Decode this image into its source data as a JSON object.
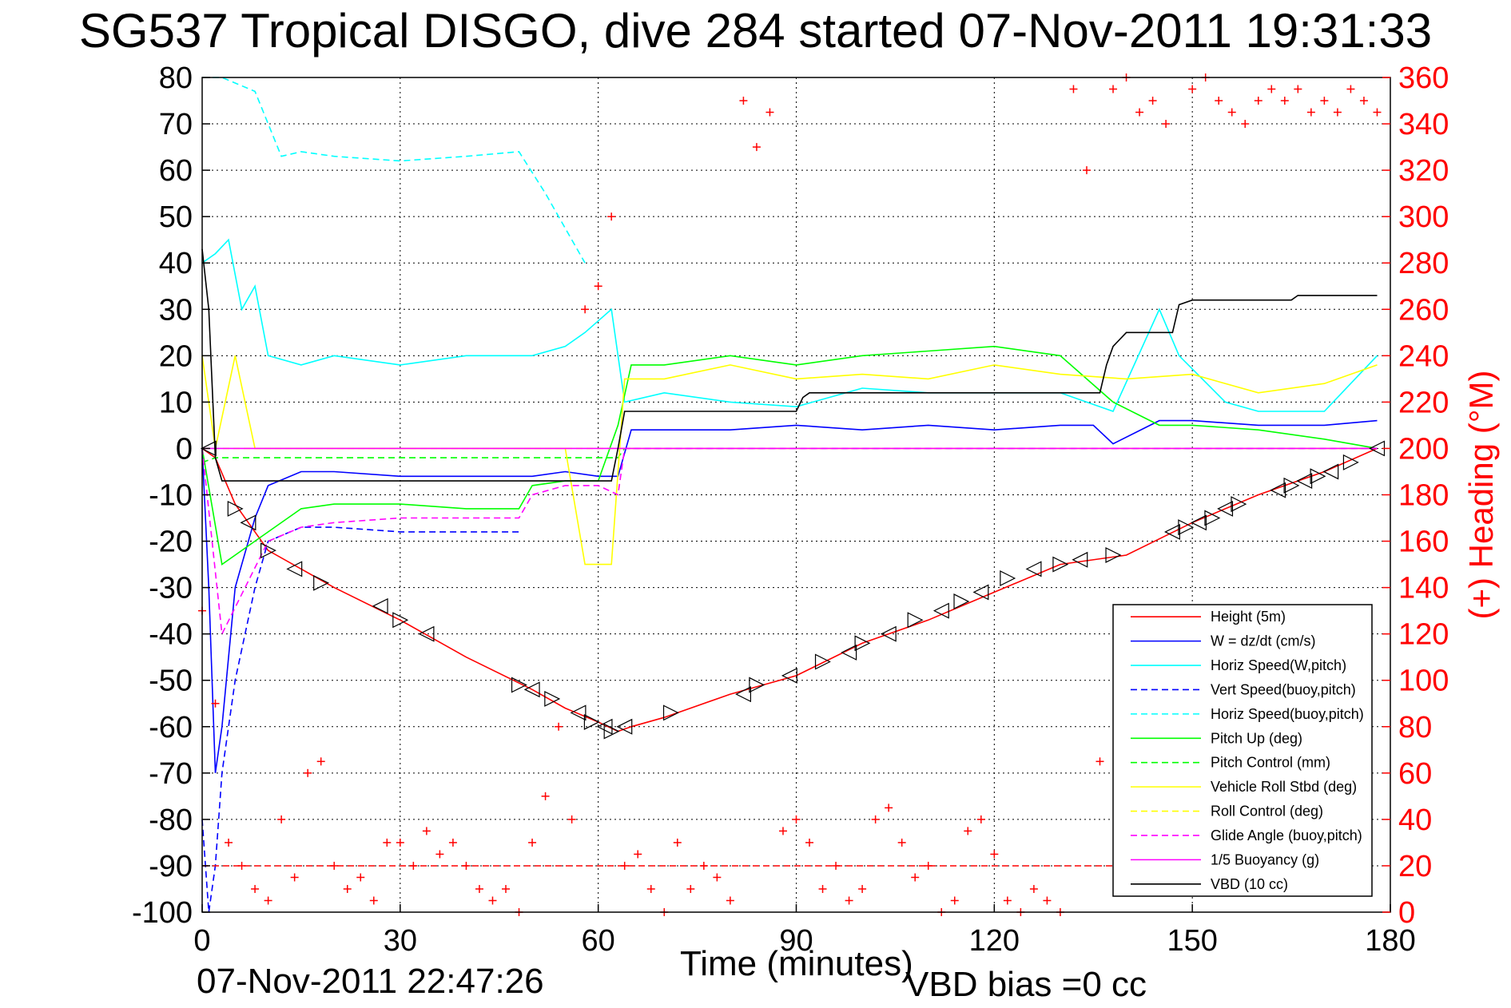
{
  "title": "SG537 Tropical DISGO, dive 284 started 07-Nov-2011 19:31:33",
  "timestamp": "07-Nov-2011 22:47:26",
  "vbd_bias": "VBD bias =0 cc",
  "chart_data": {
    "type": "line",
    "xlabel": "Time (minutes)",
    "ylabel_left": "",
    "ylabel_right": "(+) Heading (°M)",
    "xlim": [
      0,
      180
    ],
    "ylim_left": [
      -100,
      80
    ],
    "ylim_right": [
      0,
      360
    ],
    "x_ticks": [
      "0",
      "30",
      "60",
      "90",
      "120",
      "150",
      "180"
    ],
    "y_ticks_left": [
      "80",
      "70",
      "60",
      "50",
      "40",
      "30",
      "20",
      "10",
      "0",
      "-10",
      "-20",
      "-30",
      "-40",
      "-50",
      "-60",
      "-70",
      "-80",
      "-90",
      "-100"
    ],
    "y_ticks_right": [
      "360",
      "340",
      "320",
      "300",
      "280",
      "260",
      "240",
      "220",
      "200",
      "180",
      "160",
      "140",
      "120",
      "100",
      "80",
      "60",
      "40",
      "20",
      "0"
    ],
    "grid": true,
    "legend_position": "bottom-right",
    "colors": {
      "height": "#ff0000",
      "w": "#0000ff",
      "horiz_speed": "#00ffff",
      "pitch": "#00ff00",
      "roll": "#ffff00",
      "glide": "#ff00ff",
      "vbd": "#000000",
      "heading": "#ff0000"
    },
    "series": [
      {
        "name": "Height (5m)",
        "color": "#ff0000",
        "style": "solid",
        "x": [
          0,
          2,
          5,
          10,
          20,
          30,
          40,
          50,
          55,
          60,
          63,
          65,
          70,
          80,
          90,
          100,
          110,
          120,
          130,
          140,
          150,
          160,
          170,
          178
        ],
        "y": [
          0,
          -2,
          -12,
          -22,
          -30,
          -37,
          -45,
          -52,
          -56,
          -59,
          -61,
          -60,
          -58,
          -53,
          -49,
          -42,
          -37,
          -31,
          -25,
          -23,
          -16,
          -10,
          -5,
          0
        ]
      },
      {
        "name": "W = dz/dt (cm/s)",
        "color": "#0000ff",
        "style": "solid",
        "x": [
          0,
          1,
          2,
          3,
          5,
          8,
          10,
          15,
          20,
          30,
          40,
          50,
          55,
          60,
          63,
          65,
          70,
          80,
          90,
          100,
          110,
          120,
          130,
          135,
          138,
          145,
          150,
          160,
          170,
          178
        ],
        "y": [
          0,
          -30,
          -70,
          -60,
          -30,
          -15,
          -8,
          -5,
          -5,
          -6,
          -6,
          -6,
          -5,
          -6,
          -6,
          4,
          4,
          4,
          5,
          4,
          5,
          4,
          5,
          5,
          1,
          6,
          6,
          5,
          5,
          6
        ]
      },
      {
        "name": "Horiz Speed(W,pitch)",
        "color": "#00ffff",
        "style": "solid",
        "x": [
          0,
          2,
          4,
          6,
          8,
          10,
          15,
          20,
          30,
          40,
          50,
          55,
          58,
          62,
          64,
          70,
          80,
          90,
          100,
          110,
          120,
          130,
          138,
          145,
          148,
          155,
          160,
          170,
          178
        ],
        "y": [
          40,
          42,
          45,
          30,
          35,
          20,
          18,
          20,
          18,
          20,
          20,
          22,
          25,
          30,
          10,
          12,
          10,
          9,
          13,
          12,
          12,
          12,
          8,
          30,
          20,
          10,
          8,
          8,
          20
        ]
      },
      {
        "name": "Vert Speed(buoy,pitch)",
        "color": "#0000ff",
        "style": "dashed",
        "x": [
          0,
          1,
          2,
          3,
          5,
          8,
          10,
          15,
          20,
          30,
          40,
          48
        ],
        "y": [
          -80,
          -100,
          -90,
          -70,
          -50,
          -30,
          -20,
          -17,
          -17,
          -18,
          -18,
          -18
        ]
      },
      {
        "name": "Horiz Speed(buoy,pitch)",
        "color": "#00ffff",
        "style": "dashed",
        "x": [
          0,
          3,
          8,
          12,
          15,
          20,
          30,
          40,
          48,
          52,
          54,
          58
        ],
        "y": [
          80,
          80,
          77,
          63,
          64,
          63,
          62,
          63,
          64,
          55,
          50,
          40
        ]
      },
      {
        "name": "Pitch Up (deg)",
        "color": "#00ff00",
        "style": "solid",
        "x": [
          0,
          3,
          10,
          15,
          20,
          30,
          40,
          48,
          50,
          55,
          60,
          63,
          65,
          70,
          80,
          90,
          100,
          110,
          120,
          130,
          138,
          145,
          150,
          160,
          170,
          178
        ],
        "y": [
          0,
          -25,
          -18,
          -13,
          -12,
          -12,
          -13,
          -13,
          -8,
          -7,
          -7,
          5,
          18,
          18,
          20,
          18,
          20,
          21,
          22,
          20,
          10,
          5,
          5,
          4,
          2,
          0
        ]
      },
      {
        "name": "Pitch Control (mm)",
        "color": "#00ff00",
        "style": "dashed",
        "x": [
          0,
          2,
          10,
          30,
          50,
          60,
          63,
          64,
          90,
          120,
          150,
          178
        ],
        "y": [
          -3,
          -2,
          -2,
          -2,
          -2,
          -2,
          -2,
          0,
          0,
          0,
          0,
          0
        ]
      },
      {
        "name": "Vehicle Roll Stbd (deg)",
        "color": "#ffff00",
        "style": "solid",
        "x": [
          0,
          2,
          5,
          8,
          10,
          20,
          30,
          40,
          50,
          55,
          58,
          62,
          64,
          70,
          80,
          90,
          100,
          110,
          120,
          130,
          140,
          150,
          160,
          170,
          178
        ],
        "y": [
          20,
          0,
          20,
          0,
          0,
          0,
          0,
          0,
          0,
          0,
          -25,
          -25,
          15,
          15,
          18,
          15,
          16,
          15,
          18,
          16,
          15,
          16,
          12,
          14,
          18
        ]
      },
      {
        "name": "Roll Control (deg)",
        "color": "#ffff00",
        "style": "dashed",
        "x": [
          0,
          10,
          30,
          50,
          60,
          64,
          90,
          120,
          150,
          178
        ],
        "y": [
          0,
          0,
          0,
          0,
          0,
          0,
          0,
          0,
          0,
          0
        ]
      },
      {
        "name": "Glide Angle (buoy,pitch)",
        "color": "#ff00ff",
        "style": "dashed",
        "x": [
          0,
          3,
          10,
          15,
          20,
          30,
          40,
          48,
          50,
          55,
          60,
          63,
          64,
          90,
          120,
          150,
          178
        ],
        "y": [
          0,
          -40,
          -20,
          -17,
          -16,
          -15,
          -15,
          -15,
          -10,
          -8,
          -8,
          -10,
          0,
          0,
          0,
          0,
          0
        ]
      },
      {
        "name": "1/5 Buoyancy (g)",
        "color": "#ff00ff",
        "style": "solid",
        "x": [
          0,
          10,
          30,
          50,
          60,
          63,
          64,
          90,
          120,
          150,
          178
        ],
        "y": [
          0,
          0,
          0,
          0,
          0,
          0,
          0,
          0,
          0,
          0,
          0
        ]
      },
      {
        "name": "VBD (10 cc)",
        "color": "#000000",
        "style": "solid",
        "x": [
          0,
          1,
          2,
          3,
          10,
          30,
          50,
          62,
          63,
          64,
          90,
          91,
          92,
          120,
          136,
          137,
          138,
          140,
          147,
          148,
          150,
          165,
          166,
          178
        ],
        "y": [
          43,
          30,
          -2,
          -7,
          -7,
          -7,
          -7,
          -7,
          0,
          8,
          8,
          11,
          12,
          12,
          12,
          18,
          22,
          25,
          25,
          31,
          32,
          32,
          33,
          33
        ]
      }
    ],
    "heading_points": {
      "name": "Heading",
      "axis": "right",
      "color": "#ff0000",
      "x": [
        0,
        2,
        4,
        6,
        8,
        10,
        12,
        14,
        16,
        18,
        20,
        22,
        24,
        26,
        28,
        30,
        32,
        34,
        36,
        38,
        40,
        42,
        44,
        46,
        48,
        50,
        52,
        54,
        56,
        58,
        60,
        62,
        64,
        66,
        68,
        70,
        72,
        74,
        76,
        78,
        80,
        82,
        84,
        86,
        88,
        90,
        92,
        94,
        96,
        98,
        100,
        102,
        104,
        106,
        108,
        110,
        112,
        114,
        116,
        118,
        120,
        122,
        124,
        126,
        128,
        130,
        132,
        134,
        136,
        138,
        140,
        142,
        144,
        146,
        148,
        150,
        152,
        154,
        156,
        158,
        160,
        162,
        164,
        166,
        168,
        170,
        172,
        174,
        176,
        178
      ],
      "y": [
        130,
        90,
        30,
        20,
        10,
        5,
        40,
        15,
        60,
        65,
        20,
        10,
        15,
        5,
        30,
        30,
        20,
        35,
        25,
        30,
        20,
        10,
        5,
        10,
        0,
        30,
        50,
        80,
        40,
        260,
        270,
        300,
        20,
        25,
        10,
        0,
        30,
        10,
        20,
        15,
        5,
        350,
        330,
        345,
        35,
        40,
        30,
        10,
        20,
        5,
        10,
        40,
        45,
        30,
        15,
        20,
        0,
        5,
        35,
        40,
        25,
        5,
        0,
        10,
        5,
        0,
        355,
        320,
        65,
        355,
        360,
        345,
        350,
        340,
        15,
        355,
        360,
        350,
        345,
        340,
        350,
        355,
        350,
        355,
        345,
        350,
        345,
        355,
        350,
        345
      ]
    },
    "markers": {
      "name": "Height markers",
      "color": "#000000",
      "x": [
        1,
        5,
        7,
        10,
        14,
        18,
        27,
        30,
        34,
        48,
        50,
        53,
        57,
        59,
        61,
        62,
        64,
        71,
        82,
        84,
        89,
        94,
        98,
        100,
        104,
        108,
        112,
        115,
        118,
        122,
        126,
        130,
        133,
        138,
        147,
        149,
        151,
        153,
        155,
        157,
        163,
        165,
        167,
        169,
        171,
        174,
        178
      ],
      "y": [
        0,
        -13,
        -16,
        -22,
        -26,
        -29,
        -34,
        -37,
        -40,
        -51,
        -52,
        -54,
        -57,
        -59,
        -60,
        -61,
        -60,
        -57,
        -53,
        -51,
        -49,
        -46,
        -44,
        -42,
        -40,
        -37,
        -35,
        -33,
        -31,
        -28,
        -26,
        -25,
        -24,
        -23,
        -18,
        -17,
        -16,
        -15,
        -13,
        -12,
        -9,
        -8,
        -7,
        -6,
        -5,
        -3,
        0
      ]
    }
  }
}
